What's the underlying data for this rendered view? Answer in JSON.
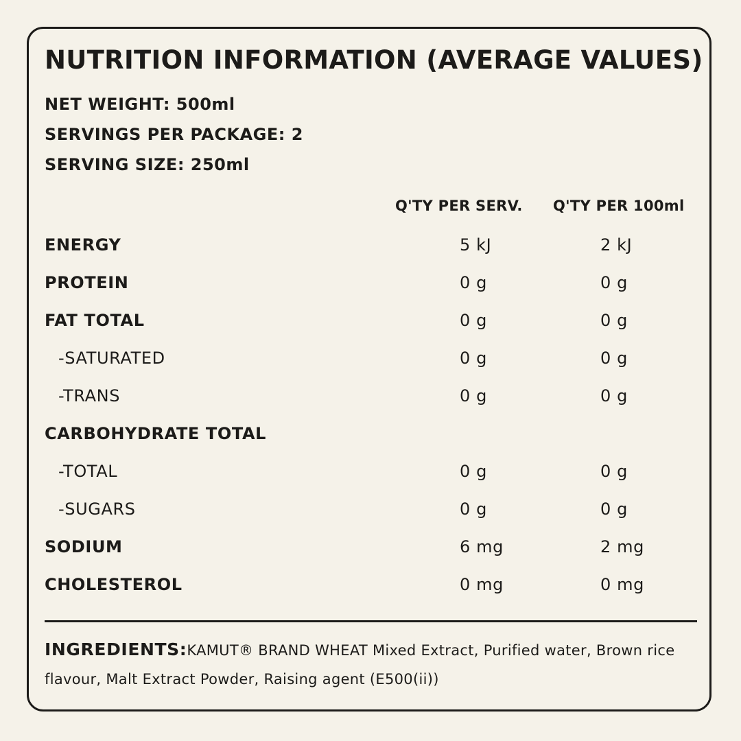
{
  "title": "NUTRITION INFORMATION (AVERAGE VALUES)",
  "meta": {
    "net_weight": "NET WEIGHT: 500ml",
    "servings_per_package": "SERVINGS PER PACKAGE: 2",
    "serving_size": "SERVING SIZE: 250ml"
  },
  "columns": {
    "per_serving": "Q'TY PER SERV.",
    "per_100ml": "Q'TY PER 100ml"
  },
  "rows": [
    {
      "name": "ENERGY",
      "per_serving": "5 kJ",
      "per_100ml": "2 kJ"
    },
    {
      "name": "PROTEIN",
      "per_serving": "0 g",
      "per_100ml": "0 g"
    },
    {
      "name": "FAT TOTAL",
      "per_serving": "0 g",
      "per_100ml": "0 g"
    },
    {
      "name": "-SATURATED",
      "per_serving": "0 g",
      "per_100ml": "0 g"
    },
    {
      "name": "-TRANS",
      "per_serving": "0 g",
      "per_100ml": "0 g"
    },
    {
      "name": "CARBOHYDRATE TOTAL",
      "per_serving": "",
      "per_100ml": ""
    },
    {
      "name": "-TOTAL",
      "per_serving": "0 g",
      "per_100ml": "0 g"
    },
    {
      "name": "-SUGARS",
      "per_serving": "0 g",
      "per_100ml": "0 g"
    },
    {
      "name": "SODIUM",
      "per_serving": "6 mg",
      "per_100ml": "2 mg"
    },
    {
      "name": "CHOLESTEROL",
      "per_serving": "0 mg",
      "per_100ml": "0 mg"
    }
  ],
  "ingredients": {
    "label": "INGREDIENTS:",
    "text": "KAMUT® BRAND WHEAT Mixed Extract, Purified water, Brown rice flavour, Malt Extract Powder, Raising agent (E500(ii))"
  }
}
